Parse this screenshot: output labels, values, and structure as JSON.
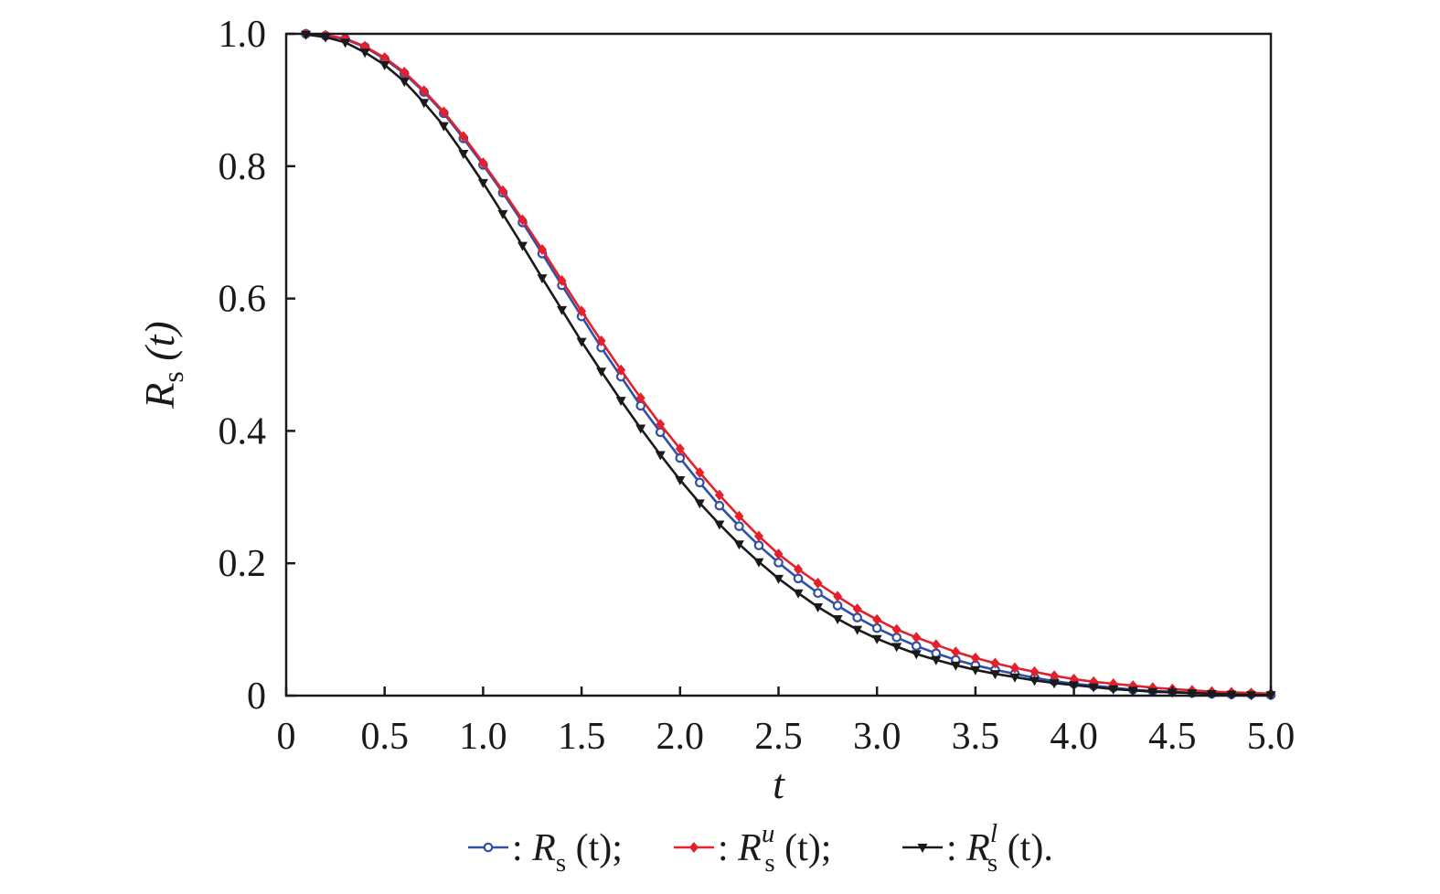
{
  "chart_data": {
    "type": "line",
    "xlabel": "t",
    "ylabel": {
      "main": "R",
      "sub": "s",
      "arg": " (t)"
    },
    "xlim": [
      0,
      5
    ],
    "ylim": [
      0,
      1
    ],
    "x_ticks": [
      0,
      0.5,
      1.0,
      1.5,
      2.0,
      2.5,
      3.0,
      3.5,
      4.0,
      4.5,
      5.0
    ],
    "x_tick_labels": [
      "0",
      "0.5",
      "1.0",
      "1.5",
      "2.0",
      "2.5",
      "3.0",
      "3.5",
      "4.0",
      "4.5",
      "5.0"
    ],
    "y_ticks": [
      0,
      0.2,
      0.4,
      0.6,
      0.8,
      1.0
    ],
    "y_tick_labels": [
      "0",
      "0.2",
      "0.4",
      "0.6",
      "0.8",
      "1.0"
    ],
    "grid": false,
    "legend_position": "bottom",
    "x": [
      0.1,
      0.2,
      0.3,
      0.4,
      0.5,
      0.6,
      0.7,
      0.8,
      0.9,
      1.0,
      1.1,
      1.2,
      1.3,
      1.4,
      1.5,
      1.6,
      1.7,
      1.8,
      1.9,
      2.0,
      2.1,
      2.2,
      2.3,
      2.4,
      2.5,
      2.6,
      2.7,
      2.8,
      2.9,
      3.0,
      3.1,
      3.2,
      3.3,
      3.4,
      3.5,
      3.6,
      3.7,
      3.8,
      3.9,
      4.0,
      4.1,
      4.2,
      4.3,
      4.4,
      4.5,
      4.6,
      4.7,
      4.8,
      4.9,
      5.0
    ],
    "series": [
      {
        "legend": {
          "main": "R",
          "sub": "s",
          "sup": "",
          "arg": " (t);"
        },
        "color": "#2f4fa8",
        "marker": "circle",
        "values": [
          1.0,
          0.997,
          0.992,
          0.98,
          0.962,
          0.94,
          0.912,
          0.88,
          0.842,
          0.802,
          0.76,
          0.715,
          0.668,
          0.62,
          0.573,
          0.526,
          0.482,
          0.438,
          0.398,
          0.359,
          0.322,
          0.287,
          0.256,
          0.227,
          0.201,
          0.177,
          0.155,
          0.136,
          0.118,
          0.102,
          0.088,
          0.075,
          0.064,
          0.054,
          0.046,
          0.039,
          0.033,
          0.027,
          0.022,
          0.018,
          0.015,
          0.012,
          0.009,
          0.007,
          0.006,
          0.004,
          0.003,
          0.002,
          0.002,
          0.001
        ]
      },
      {
        "legend": {
          "main": "R",
          "sub": "s",
          "sup": "u",
          "arg": " (t);"
        },
        "color": "#e4202a",
        "marker": "diamond",
        "values": [
          1.0,
          0.998,
          0.993,
          0.981,
          0.964,
          0.942,
          0.914,
          0.882,
          0.845,
          0.805,
          0.763,
          0.719,
          0.674,
          0.627,
          0.581,
          0.536,
          0.492,
          0.45,
          0.41,
          0.373,
          0.337,
          0.303,
          0.271,
          0.241,
          0.214,
          0.191,
          0.17,
          0.15,
          0.131,
          0.115,
          0.1,
          0.088,
          0.077,
          0.066,
          0.057,
          0.049,
          0.042,
          0.036,
          0.03,
          0.025,
          0.021,
          0.018,
          0.015,
          0.012,
          0.01,
          0.008,
          0.006,
          0.005,
          0.004,
          0.003
        ]
      },
      {
        "legend": {
          "main": "R",
          "sub": "s",
          "sup": "l",
          "arg": " (t)."
        },
        "color": "#1a1a1a",
        "marker": "triangle-down",
        "values": [
          0.999,
          0.995,
          0.987,
          0.972,
          0.953,
          0.928,
          0.896,
          0.861,
          0.819,
          0.775,
          0.728,
          0.68,
          0.631,
          0.583,
          0.535,
          0.49,
          0.446,
          0.404,
          0.364,
          0.326,
          0.291,
          0.259,
          0.229,
          0.202,
          0.177,
          0.155,
          0.134,
          0.116,
          0.1,
          0.086,
          0.074,
          0.063,
          0.054,
          0.046,
          0.039,
          0.033,
          0.028,
          0.023,
          0.019,
          0.016,
          0.013,
          0.01,
          0.008,
          0.006,
          0.005,
          0.004,
          0.003,
          0.002,
          0.001,
          0.001
        ]
      }
    ]
  }
}
